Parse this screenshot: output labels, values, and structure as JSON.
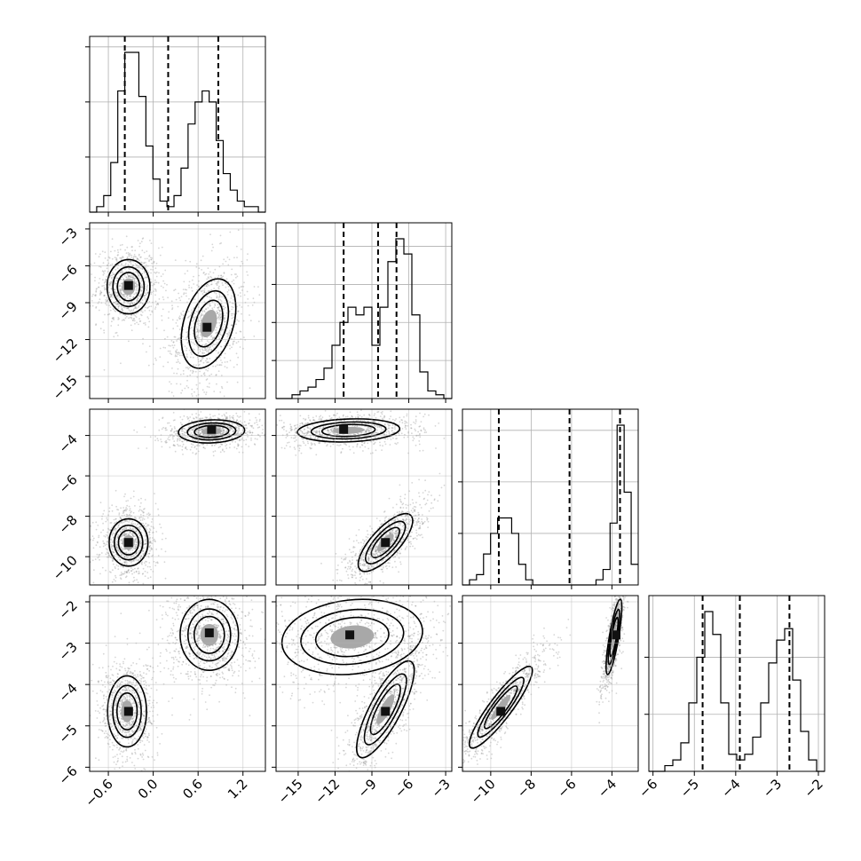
{
  "chart_data": {
    "type": "corner",
    "parameters": [
      {
        "range": [
          -0.85,
          1.5
        ],
        "ticks": [
          -0.6,
          0.0,
          0.6,
          1.2
        ],
        "tick_labels": [
          "−0.6",
          "0.0",
          "0.6",
          "1.2"
        ],
        "quantiles": [
          -0.38,
          0.2,
          0.87
        ]
      },
      {
        "range": [
          -16.8,
          -2.5
        ],
        "ticks": [
          -15,
          -12,
          -9,
          -6,
          -3
        ],
        "tick_labels": [
          "−15",
          "−12",
          "−9",
          "−6",
          "−3"
        ],
        "quantiles": [
          -11.3,
          -8.5,
          -7.0
        ]
      },
      {
        "range": [
          -11.4,
          -2.7
        ],
        "ticks": [
          -10,
          -8,
          -6,
          -4
        ],
        "tick_labels": [
          "−10",
          "−8",
          "−6",
          "−4"
        ],
        "quantiles": [
          -9.6,
          -6.1,
          -3.6
        ]
      },
      {
        "range": [
          -6.1,
          -1.85
        ],
        "ticks": [
          -6,
          -5,
          -4,
          -3,
          -2
        ],
        "tick_labels": [
          "−6",
          "−5",
          "−4",
          "−3",
          "−2"
        ],
        "quantiles": [
          -4.8,
          -3.9,
          -2.7
        ]
      }
    ],
    "histograms": [
      {
        "counts": [
          0,
          1,
          3,
          9,
          22,
          29,
          29,
          21,
          12,
          6,
          2,
          1,
          3,
          8,
          16,
          20,
          22,
          20,
          13,
          7,
          4,
          2,
          1,
          1,
          0
        ]
      },
      {
        "counts": [
          0,
          0,
          1,
          2,
          3,
          5,
          8,
          14,
          20,
          24,
          22,
          24,
          14,
          24,
          36,
          42,
          38,
          22,
          7,
          2,
          1,
          0
        ]
      },
      {
        "counts": [
          0,
          1,
          2,
          6,
          10,
          13,
          13,
          10,
          4,
          1,
          0,
          0,
          0,
          0,
          0,
          0,
          0,
          0,
          0,
          1,
          3,
          12,
          31,
          18,
          4
        ]
      },
      {
        "counts": [
          0,
          0,
          1,
          2,
          5,
          12,
          20,
          28,
          24,
          12,
          3,
          2,
          3,
          6,
          12,
          19,
          23,
          25,
          16,
          7,
          2,
          0
        ]
      }
    ],
    "panels": [
      {
        "row": 1,
        "col": 0,
        "modes": [
          {
            "cx": -0.33,
            "cy": -7.7,
            "sx": 0.11,
            "sy": 0.85,
            "rho": 0.0,
            "peak": [
              -0.33,
              -7.6
            ]
          },
          {
            "cx": 0.74,
            "cy": -10.7,
            "sx": 0.14,
            "sy": 1.4,
            "rho": 0.35,
            "peak": [
              0.72,
              -11.0
            ]
          }
        ]
      },
      {
        "row": 2,
        "col": 0,
        "modes": [
          {
            "cx": 0.78,
            "cy": -3.8,
            "sx": 0.17,
            "sy": 0.22,
            "rho": 0.1,
            "peak": [
              0.78,
              -3.7
            ]
          },
          {
            "cx": -0.33,
            "cy": -9.3,
            "sx": 0.1,
            "sy": 0.45,
            "rho": 0.0,
            "peak": [
              -0.33,
              -9.3
            ]
          }
        ]
      },
      {
        "row": 2,
        "col": 1,
        "modes": [
          {
            "cx": -10.9,
            "cy": -3.75,
            "sx": 1.6,
            "sy": 0.22,
            "rho": 0.15,
            "peak": [
              -11.3,
              -3.7
            ]
          },
          {
            "cx": -7.9,
            "cy": -9.3,
            "sx": 0.85,
            "sy": 0.55,
            "rho": 0.75,
            "peak": [
              -7.9,
              -9.3
            ]
          }
        ]
      },
      {
        "row": 3,
        "col": 0,
        "modes": [
          {
            "cx": -0.35,
            "cy": -4.65,
            "sx": 0.1,
            "sy": 0.33,
            "rho": 0.0,
            "peak": [
              -0.33,
              -4.65
            ]
          },
          {
            "cx": 0.75,
            "cy": -2.8,
            "sx": 0.15,
            "sy": 0.33,
            "rho": 0.0,
            "peak": [
              0.75,
              -2.75
            ]
          }
        ]
      },
      {
        "row": 3,
        "col": 1,
        "modes": [
          {
            "cx": -10.6,
            "cy": -2.85,
            "sx": 2.2,
            "sy": 0.35,
            "rho": 0.15,
            "peak": [
              -10.8,
              -2.8
            ]
          },
          {
            "cx": -7.9,
            "cy": -4.6,
            "sx": 0.9,
            "sy": 0.45,
            "rho": 0.8,
            "peak": [
              -7.9,
              -4.65
            ]
          }
        ]
      },
      {
        "row": 3,
        "col": 2,
        "modes": [
          {
            "cx": -9.5,
            "cy": -4.55,
            "sx": 0.6,
            "sy": 0.38,
            "rho": 0.9,
            "peak": [
              -9.5,
              -4.65
            ]
          },
          {
            "cx": -3.9,
            "cy": -2.85,
            "sx": 0.15,
            "sy": 0.35,
            "rho": 0.8,
            "peak": [
              -3.8,
              -2.8
            ]
          }
        ]
      }
    ],
    "grid": true
  }
}
